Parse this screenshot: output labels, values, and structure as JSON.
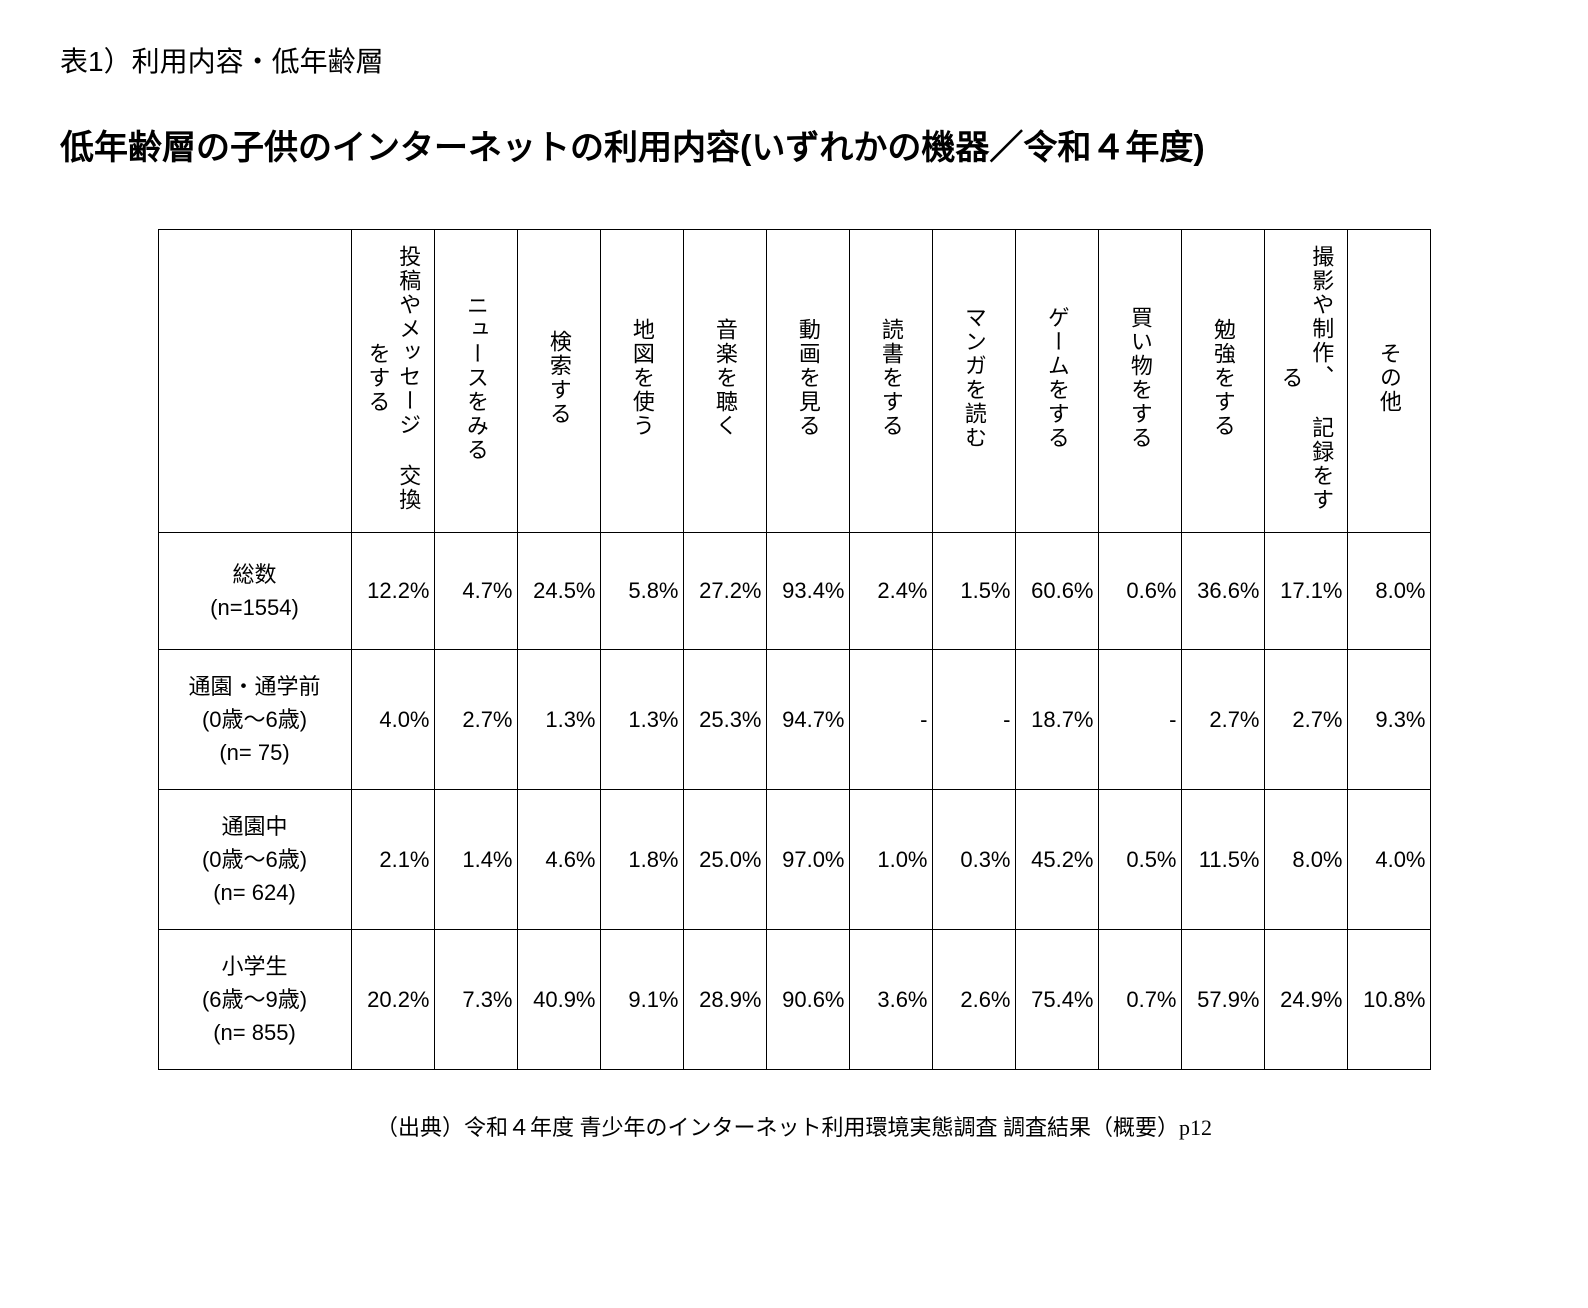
{
  "caption": "表1）利用内容・低年齢層",
  "title": "低年齢層の子供のインターネットの利用内容(いずれかの機器／令和４年度)",
  "source": "（出典）令和４年度 青少年のインターネット利用環境実態調査 調査結果（概要）p12",
  "table": {
    "columns": [
      "投稿やメッセージ\n交換をする",
      "ニュースをみる",
      "検索する",
      "地図を使う",
      "音楽を聴く",
      "動画を見る",
      "読書をする",
      "マンガを読む",
      "ゲームをする",
      "買い物をする",
      "勉強をする",
      "撮影や制作、\n記録をする",
      "その他"
    ],
    "rows": [
      {
        "label": "総数\n(n=1554)",
        "values": [
          "12.2%",
          "4.7%",
          "24.5%",
          "5.8%",
          "27.2%",
          "93.4%",
          "2.4%",
          "1.5%",
          "60.6%",
          "0.6%",
          "36.6%",
          "17.1%",
          "8.0%"
        ]
      },
      {
        "label": "通園・通学前\n(0歳～6歳)\n(n=   75)",
        "values": [
          "4.0%",
          "2.7%",
          "1.3%",
          "1.3%",
          "25.3%",
          "94.7%",
          "-",
          "-",
          "18.7%",
          "-",
          "2.7%",
          "2.7%",
          "9.3%"
        ]
      },
      {
        "label": "通園中\n(0歳～6歳)\n(n=  624)",
        "values": [
          "2.1%",
          "1.4%",
          "4.6%",
          "1.8%",
          "25.0%",
          "97.0%",
          "1.0%",
          "0.3%",
          "45.2%",
          "0.5%",
          "11.5%",
          "8.0%",
          "4.0%"
        ]
      },
      {
        "label": "小学生\n(6歳～9歳)\n(n=  855)",
        "values": [
          "20.2%",
          "7.3%",
          "40.9%",
          "9.1%",
          "28.9%",
          "90.6%",
          "3.6%",
          "2.6%",
          "75.4%",
          "0.7%",
          "57.9%",
          "24.9%",
          "10.8%"
        ]
      }
    ],
    "border_color": "#000000",
    "background_color": "#ffffff",
    "text_color": "#000000",
    "header_fontsize": 22,
    "cell_fontsize": 22,
    "caption_fontsize": 28,
    "title_fontsize": 34,
    "title_fontweight": "bold"
  }
}
